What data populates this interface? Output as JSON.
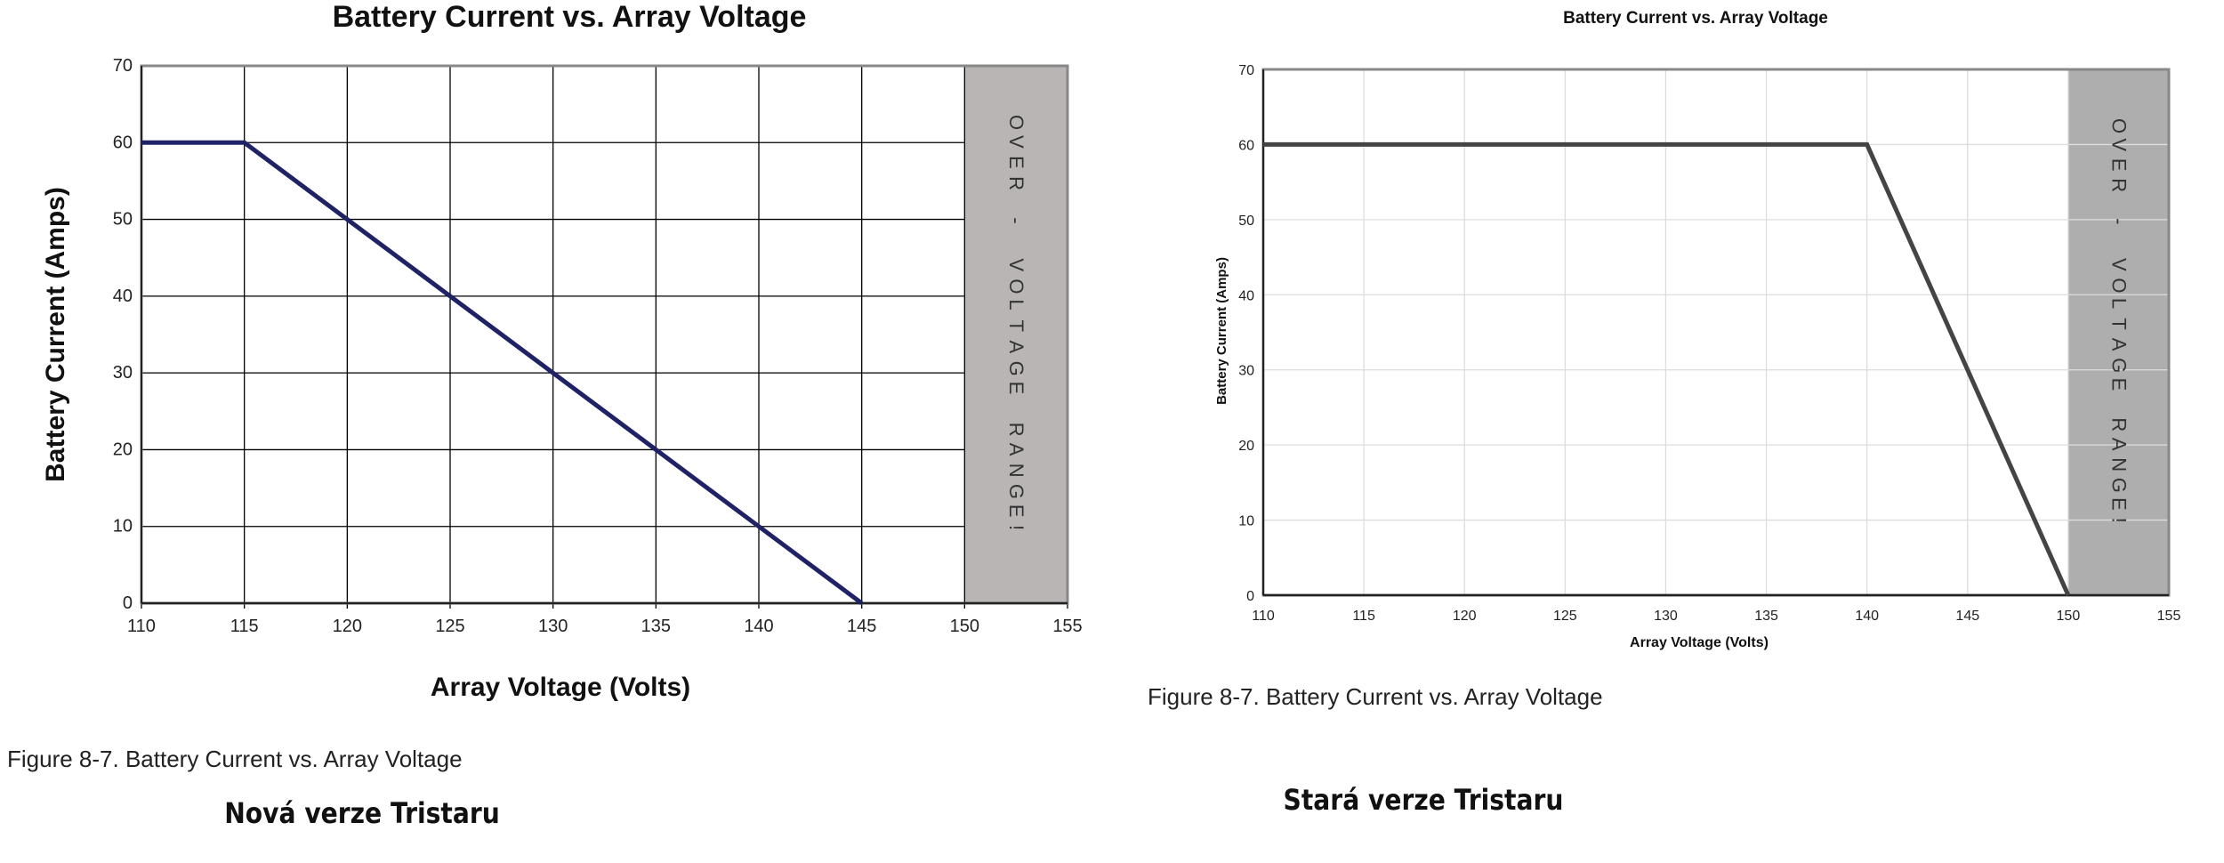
{
  "charts": [
    {
      "type": "line",
      "title": "Battery Current vs. Array Voltage",
      "xlabel": "Array Voltage (Volts)",
      "ylabel": "Battery Current (Amps)",
      "xlim": [
        110,
        155
      ],
      "ylim": [
        0,
        70
      ],
      "xticks": [
        110,
        115,
        120,
        125,
        130,
        135,
        140,
        145,
        150,
        155
      ],
      "yticks": [
        0,
        10,
        20,
        30,
        40,
        50,
        60,
        70
      ],
      "grid": true,
      "series": [
        {
          "x": [
            110,
            115,
            145
          ],
          "y": [
            60,
            60,
            0
          ]
        }
      ],
      "shaded_region": {
        "x": [
          150,
          155
        ],
        "label": "OVER - VOLTAGE RANGE!"
      },
      "colors": {
        "line": "#1f2366",
        "grid": "#000000",
        "band": "#b9b5b5"
      },
      "caption": "Figure 8-7. Battery Current vs. Array Voltage",
      "note": "Nová verze Tristaru"
    },
    {
      "type": "line",
      "title": "Battery Current vs. Array Voltage",
      "xlabel": "Array Voltage (Volts)",
      "ylabel": "Battery Current (Amps)",
      "xlim": [
        110,
        155
      ],
      "ylim": [
        0,
        70
      ],
      "xticks": [
        110,
        115,
        120,
        125,
        130,
        135,
        140,
        145,
        150,
        155
      ],
      "yticks": [
        0,
        10,
        20,
        30,
        40,
        50,
        60,
        70
      ],
      "grid": true,
      "series": [
        {
          "x": [
            110,
            140,
            150
          ],
          "y": [
            60,
            60,
            0
          ]
        }
      ],
      "shaded_region": {
        "x": [
          150,
          155
        ],
        "label": "OVER - VOLTAGE RANGE!"
      },
      "colors": {
        "line": "#444444",
        "grid": "#dddddd",
        "band": "#aeaeae"
      },
      "caption": "Figure 8-7. Battery Current vs. Array Voltage",
      "note": "Stará verze Tristaru"
    }
  ]
}
